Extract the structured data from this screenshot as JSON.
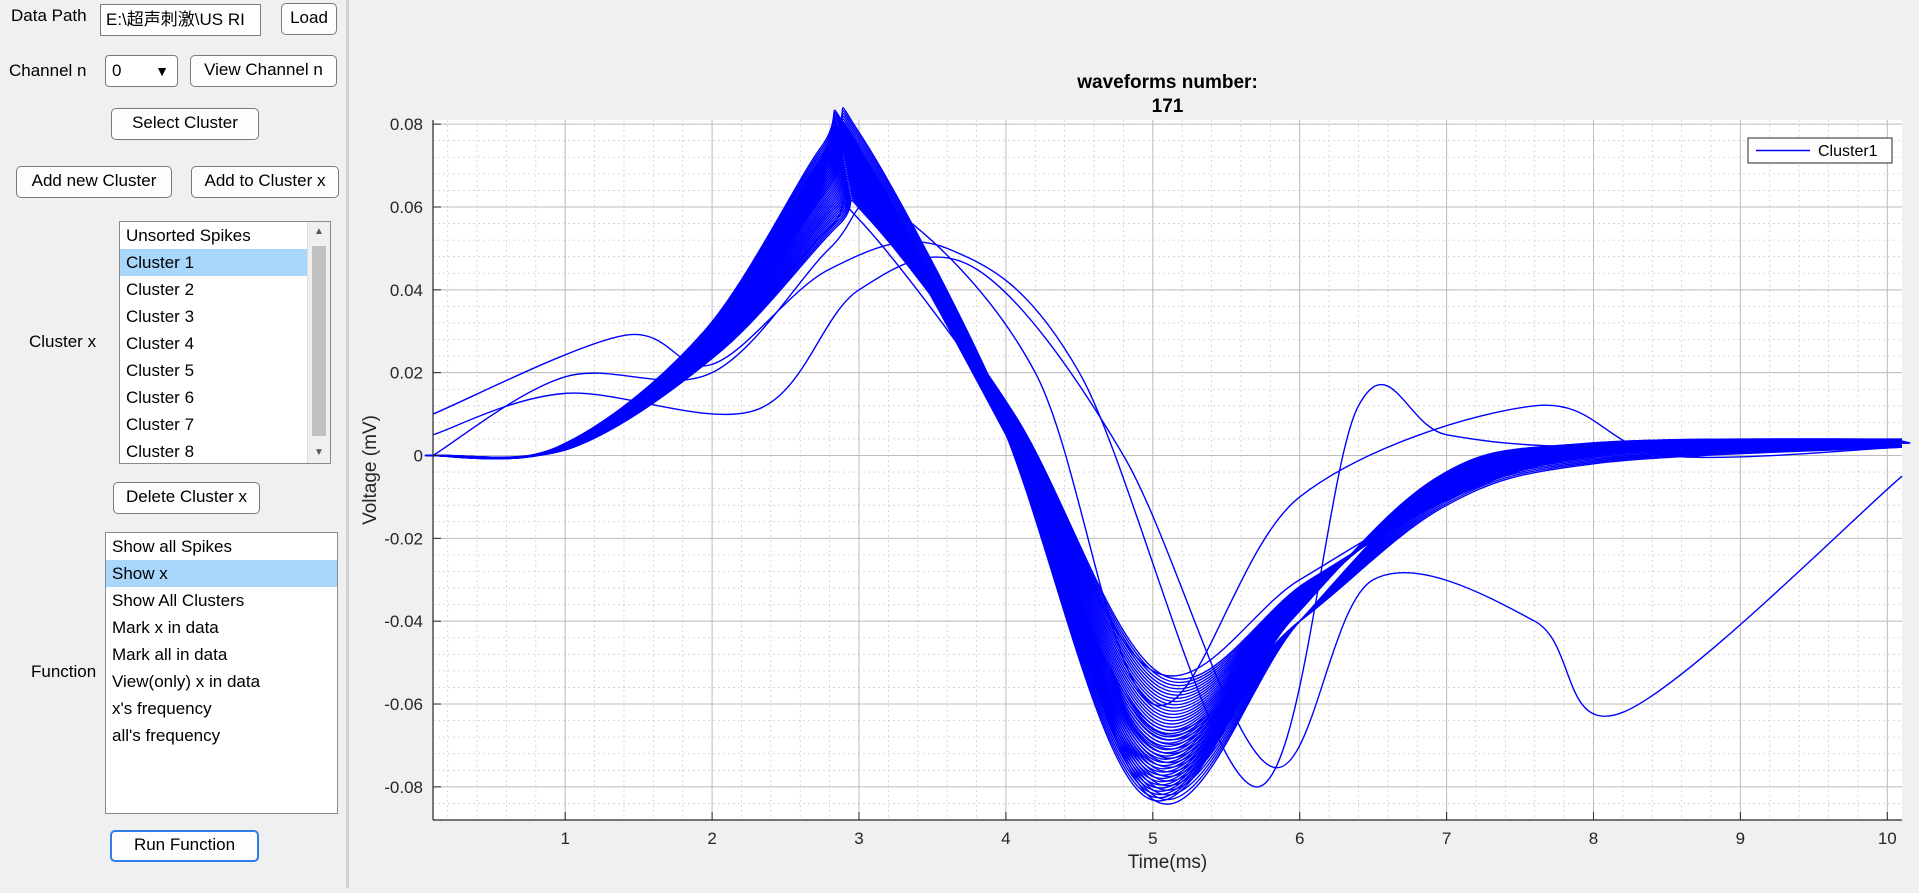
{
  "controls": {
    "data_path_label": "Data Path",
    "data_path_value": "E:\\超声刺激\\US RI",
    "load_label": "Load",
    "channel_label": "Channel n",
    "channel_value": "0",
    "view_channel_label": "View Channel n",
    "select_cluster_label": "Select Cluster",
    "add_new_cluster_label": "Add new Cluster",
    "add_to_cluster_label": "Add to Cluster x",
    "cluster_x_label": "Cluster x",
    "delete_cluster_label": "Delete Cluster x",
    "function_label": "Function",
    "run_function_label": "Run Function"
  },
  "cluster_list": {
    "items": [
      "Unsorted Spikes",
      "Cluster 1",
      "Cluster 2",
      "Cluster 3",
      "Cluster 4",
      "Cluster 5",
      "Cluster 6",
      "Cluster 7",
      "Cluster 8"
    ],
    "selected_index": 1
  },
  "function_list": {
    "items": [
      "Show all Spikes",
      "Show x",
      "Show All Clusters",
      "Mark x in data",
      "Mark all in data",
      "View(only) x in data",
      "x's frequency",
      "all's frequency"
    ],
    "selected_index": 1
  },
  "colors": {
    "series": "#0000ff",
    "selection": "#a9d6fb",
    "focus_border": "#2b7ee8"
  },
  "chart_data": {
    "type": "line",
    "title": "waveforms number:",
    "subtitle": "171",
    "xlabel": "Time(ms)",
    "ylabel": "Voltage (mV)",
    "xlim": [
      0.1,
      10.1
    ],
    "ylim": [
      -0.088,
      0.081
    ],
    "x_ticks": [
      1,
      2,
      3,
      4,
      5,
      6,
      7,
      8,
      9,
      10
    ],
    "y_ticks": [
      0.08,
      0.06,
      0.04,
      0.02,
      0,
      -0.02,
      -0.04,
      -0.06,
      -0.08
    ],
    "y_tick_labels": [
      "0.08",
      "0.06",
      "0.04",
      "0.02",
      "0",
      "-0.02",
      "-0.04",
      "-0.06",
      "-0.08"
    ],
    "grid": true,
    "minor_grid": true,
    "legend": {
      "entries": [
        "Cluster1"
      ],
      "placement": "top-right"
    },
    "waveform_count": 171,
    "series": [
      {
        "name": "Cluster1",
        "x": [
          0.1,
          1,
          2,
          2.8,
          3,
          4,
          5,
          6,
          7,
          8,
          10.1
        ],
        "y": [
          0,
          0.002,
          0.03,
          0.075,
          0.078,
          0.01,
          -0.083,
          -0.04,
          -0.005,
          0.003,
          0.004
        ]
      },
      {
        "x": [
          0.1,
          1,
          2,
          2.8,
          3,
          4,
          5,
          6,
          7,
          8,
          10.1
        ],
        "y": [
          0,
          0.002,
          0.025,
          0.055,
          0.057,
          0.01,
          -0.052,
          -0.03,
          -0.01,
          0,
          0.003
        ]
      },
      {
        "x": [
          0.1,
          1,
          2,
          2.8,
          3,
          4,
          5,
          6,
          7,
          8,
          10.1
        ],
        "y": [
          0,
          0.002,
          0.027,
          0.065,
          0.068,
          0.005,
          -0.065,
          -0.04,
          -0.012,
          -0.002,
          0.002
        ]
      },
      {
        "x": [
          0.1,
          1.4,
          2,
          2.8,
          3.6,
          4.5,
          5.7,
          6.4,
          7,
          8,
          10.1
        ],
        "y": [
          0.01,
          0.029,
          0.022,
          0.045,
          0.05,
          0.02,
          -0.08,
          0.012,
          0.005,
          0.002,
          0.003
        ]
      },
      {
        "x": [
          0.1,
          1,
          2.3,
          3,
          3.8,
          4.8,
          5.8,
          6.5,
          7.6,
          8.2,
          10.1
        ],
        "y": [
          0.005,
          0.015,
          0.011,
          0.04,
          0.045,
          0.0,
          -0.075,
          -0.03,
          -0.04,
          -0.062,
          -0.005
        ]
      },
      {
        "x": [
          0.1,
          1,
          2,
          2.8,
          3.2,
          4.2,
          5,
          6,
          7.6,
          8.5,
          10.1
        ],
        "y": [
          0,
          0.019,
          0.02,
          0.05,
          0.06,
          0.02,
          -0.06,
          -0.01,
          0.012,
          0.0,
          0.002
        ]
      }
    ]
  }
}
